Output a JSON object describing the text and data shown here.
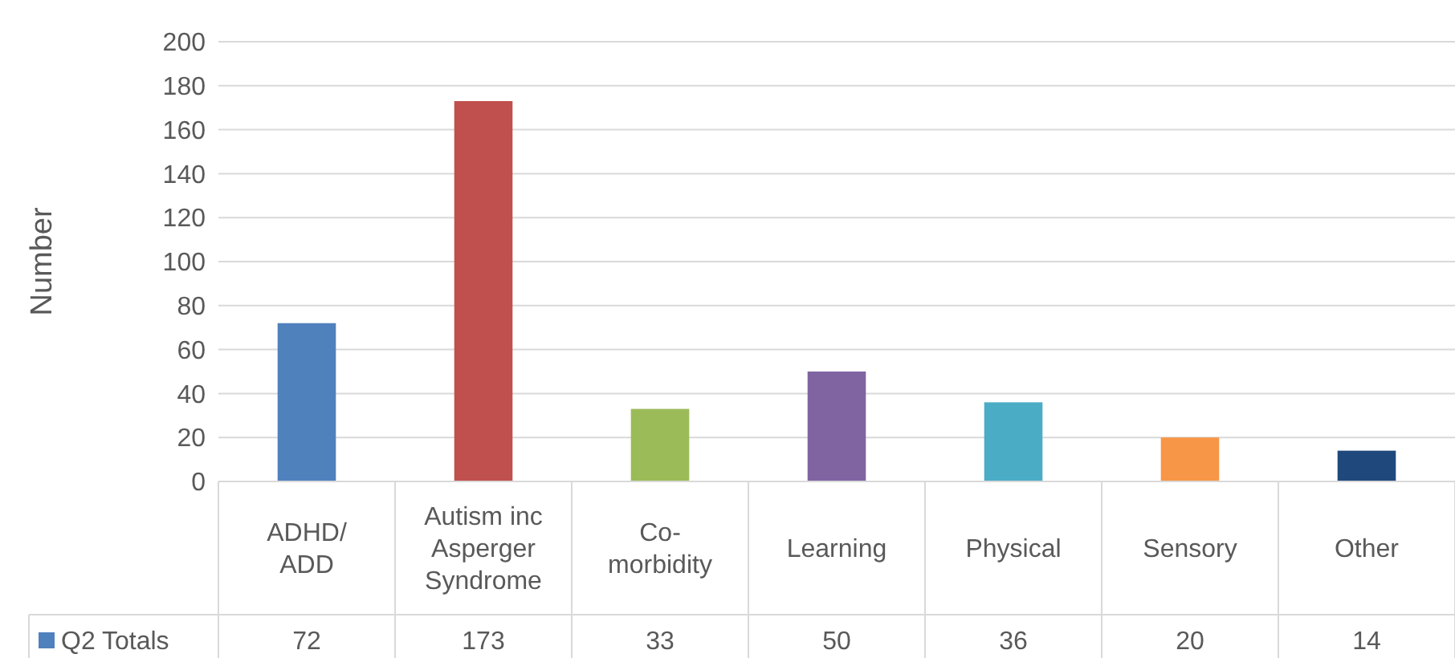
{
  "chart_data": {
    "type": "bar",
    "ylabel": "Number",
    "categories": [
      "ADHD/ADD",
      "Autism inc Asperger Syndrome",
      "Co-morbidity",
      "Learning",
      "Physical",
      "Sensory",
      "Other"
    ],
    "series": [
      {
        "name": "Q2 Totals",
        "color": "#4f81bd",
        "values": [
          72,
          173,
          33,
          50,
          36,
          20,
          14
        ],
        "colors": [
          "#4f81bd",
          "#c0504d",
          "#9bbb59",
          "#8064a2",
          "#4bacc6",
          "#f79646",
          "#1f497d"
        ]
      }
    ],
    "ylim": [
      0,
      200
    ],
    "yticks": [
      0,
      20,
      40,
      60,
      80,
      100,
      120,
      140,
      160,
      180,
      200
    ],
    "grid": "y",
    "data_labels": true,
    "legend": "bottom"
  }
}
